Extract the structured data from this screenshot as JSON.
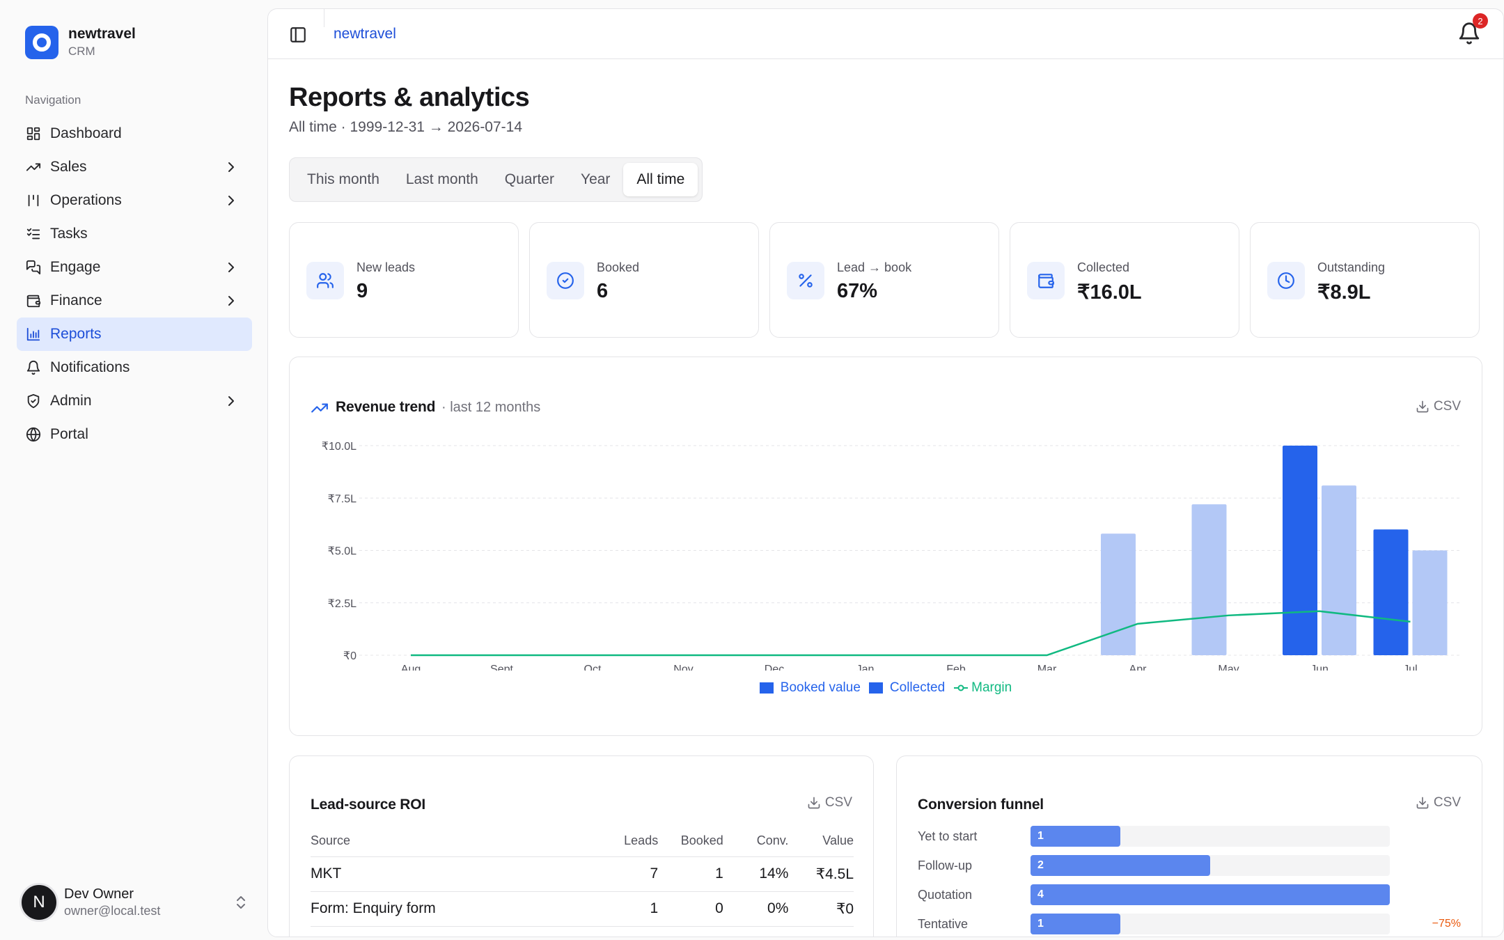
{
  "brand": {
    "name": "newtravel",
    "sub": "CRM"
  },
  "nav": {
    "caption": "Navigation",
    "items": [
      {
        "label": "Dashboard",
        "icon": "dashboard-icon",
        "chevron": false,
        "active": false
      },
      {
        "label": "Sales",
        "icon": "trending-up-icon",
        "chevron": true,
        "active": false
      },
      {
        "label": "Operations",
        "icon": "operations-icon",
        "chevron": true,
        "active": false
      },
      {
        "label": "Tasks",
        "icon": "tasks-icon",
        "chevron": false,
        "active": false
      },
      {
        "label": "Engage",
        "icon": "chat-icon",
        "chevron": true,
        "active": false
      },
      {
        "label": "Finance",
        "icon": "wallet-icon",
        "chevron": true,
        "active": false
      },
      {
        "label": "Reports",
        "icon": "bar-chart-icon",
        "chevron": false,
        "active": true
      },
      {
        "label": "Notifications",
        "icon": "bell-icon",
        "chevron": false,
        "active": false
      },
      {
        "label": "Admin",
        "icon": "shield-icon",
        "chevron": true,
        "active": false
      },
      {
        "label": "Portal",
        "icon": "globe-icon",
        "chevron": false,
        "active": false
      }
    ]
  },
  "user": {
    "initial": "N",
    "name": "Dev Owner",
    "email": "owner@local.test"
  },
  "topbar": {
    "breadcrumb": "newtravel",
    "notification_count": "2"
  },
  "page": {
    "title": "Reports & analytics",
    "subtitle": "All time · 1999-12-31 → 2026-07-14"
  },
  "tabs": [
    {
      "label": "This month",
      "active": false
    },
    {
      "label": "Last month",
      "active": false
    },
    {
      "label": "Quarter",
      "active": false
    },
    {
      "label": "Year",
      "active": false
    },
    {
      "label": "All time",
      "active": true
    }
  ],
  "kpis": [
    {
      "label": "New leads",
      "value": "9",
      "icon": "users-icon"
    },
    {
      "label": "Booked",
      "value": "6",
      "icon": "check-circle-icon"
    },
    {
      "label": "Lead → book",
      "value": "67%",
      "icon": "percent-icon"
    },
    {
      "label": "Collected",
      "value": "₹16.0L",
      "icon": "wallet-icon"
    },
    {
      "label": "Outstanding",
      "value": "₹8.9L",
      "icon": "clock-icon"
    }
  ],
  "revenue": {
    "title": "Revenue trend",
    "subtitle": "· last 12 months",
    "csv_label": "CSV"
  },
  "chart_data": {
    "type": "bar",
    "categories": [
      "Aug",
      "Sept",
      "Oct",
      "Nov",
      "Dec",
      "Jan",
      "Feb",
      "Mar",
      "Apr",
      "May",
      "Jun",
      "Jul"
    ],
    "ylim": [
      0,
      10
    ],
    "yticks": [
      {
        "value": 0,
        "label": "₹0"
      },
      {
        "value": 2.5,
        "label": "₹2.5L"
      },
      {
        "value": 5,
        "label": "₹5.0L"
      },
      {
        "value": 7.5,
        "label": "₹7.5L"
      },
      {
        "value": 10,
        "label": "₹10.0L"
      }
    ],
    "grid": true,
    "legend_position": "bottom-center",
    "series": [
      {
        "name": "Booked value",
        "type": "bar",
        "color": "#2563eb",
        "values": [
          0,
          0,
          0,
          0,
          0,
          0,
          0,
          0,
          0,
          0,
          10.0,
          6.0
        ]
      },
      {
        "name": "Collected",
        "type": "bar",
        "color": "#b3c8f6",
        "legend_color": "#2563eb",
        "values": [
          0,
          0,
          0,
          0,
          0,
          0,
          0,
          0,
          5.8,
          7.2,
          8.1,
          5.0
        ]
      },
      {
        "name": "Margin",
        "type": "line",
        "color": "#10b981",
        "values": [
          0,
          0,
          0,
          0,
          0,
          0,
          0,
          0,
          1.5,
          1.9,
          2.1,
          1.6
        ]
      }
    ]
  },
  "roi": {
    "title": "Lead-source ROI",
    "csv_label": "CSV",
    "columns": [
      "Source",
      "Leads",
      "Booked",
      "Conv.",
      "Value"
    ],
    "rows": [
      [
        "MKT",
        "7",
        "1",
        "14%",
        "₹4.5L"
      ],
      [
        "Form: Enquiry form",
        "1",
        "0",
        "0%",
        "₹0"
      ]
    ]
  },
  "funnel": {
    "title": "Conversion funnel",
    "csv_label": "CSV",
    "stages": [
      {
        "label": "Yet to start",
        "count": 1,
        "delta": ""
      },
      {
        "label": "Follow-up",
        "count": 2,
        "delta": ""
      },
      {
        "label": "Quotation",
        "count": 4,
        "delta": ""
      },
      {
        "label": "Tentative",
        "count": 1,
        "delta": "−75%"
      }
    ]
  }
}
